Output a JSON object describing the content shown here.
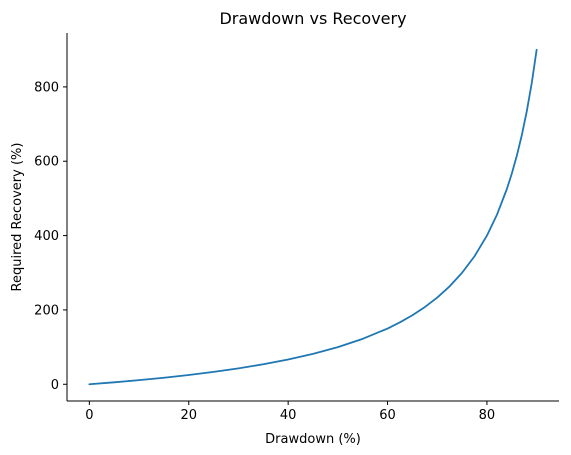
{
  "chart_data": {
    "type": "line",
    "title": "Drawdown vs Recovery",
    "xlabel": "Drawdown (%)",
    "ylabel": "Required Recovery (%)",
    "xlim": [
      -4.5,
      94.5
    ],
    "ylim": [
      -45,
      945
    ],
    "xticks": [
      0,
      20,
      40,
      60,
      80
    ],
    "yticks": [
      0,
      200,
      400,
      600,
      800
    ],
    "grid": false,
    "legend": "none",
    "series": [
      {
        "color": "#1f77b4",
        "x": [
          0,
          5,
          10,
          15,
          20,
          25,
          30,
          35,
          40,
          45,
          50,
          55,
          60,
          62.5,
          65,
          67.5,
          70,
          72.5,
          75,
          77.5,
          80,
          82,
          84,
          85,
          86,
          87,
          88,
          89,
          90
        ],
        "y": [
          0,
          5.3,
          11.1,
          17.6,
          25.0,
          33.3,
          42.9,
          53.8,
          66.7,
          81.8,
          100.0,
          122.2,
          150.0,
          166.7,
          185.7,
          207.7,
          233.3,
          263.6,
          300.0,
          344.4,
          400.0,
          455.6,
          525.0,
          566.7,
          614.3,
          669.2,
          733.3,
          809.1,
          900.0
        ]
      }
    ]
  }
}
